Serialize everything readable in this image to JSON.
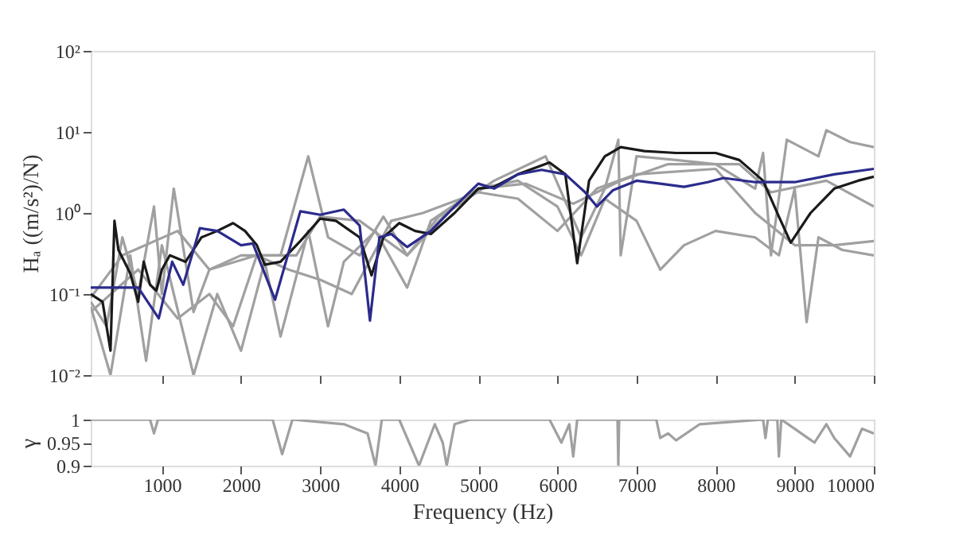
{
  "chart_data": [
    {
      "type": "line",
      "ylabel": "Hₐ ((m/s²)/N)",
      "log": "y",
      "xlim": [
        100,
        10000
      ],
      "xticks": [
        1000,
        2000,
        3000,
        4000,
        5000,
        6000,
        7000,
        8000,
        9000,
        10000
      ],
      "ylim": [
        0.01,
        100
      ],
      "yticks": [
        {
          "value": 0.01,
          "label": "10⁻²"
        },
        {
          "value": 0.1,
          "label": "10⁻¹"
        },
        {
          "value": 1,
          "label": "10⁰"
        },
        {
          "value": 10,
          "label": "10¹"
        },
        {
          "value": 100,
          "label": "10²"
        }
      ],
      "tick_labels": "y",
      "grid": false,
      "line_style": "solid",
      "marker": "none",
      "series": [
        {
          "color": "#a0a0a0",
          "x": [
            100,
            300,
            500,
            700,
            900,
            1000,
            1150,
            1400,
            1600,
            2000,
            2500,
            2850,
            3100,
            3500,
            3800,
            4100,
            4600,
            5200,
            5850,
            6300,
            6600,
            6770,
            6800,
            7000,
            7500,
            8000,
            8500,
            8600,
            8700,
            8900,
            9300,
            9400,
            9700,
            10000
          ],
          "values": [
            0.08,
            0.04,
            0.5,
            0.1,
            1.2,
            0.1,
            2.0,
            0.06,
            0.2,
            0.3,
            0.3,
            5.0,
            0.5,
            0.3,
            0.9,
            0.3,
            1.0,
            2.5,
            5.0,
            0.5,
            2.0,
            8.0,
            0.3,
            5.0,
            4.5,
            4.0,
            2.0,
            5.5,
            0.3,
            8.0,
            5.0,
            10.5,
            7.5,
            6.5
          ]
        },
        {
          "color": "#a0a0a0",
          "x": [
            100,
            350,
            600,
            800,
            1000,
            1400,
            1700,
            2000,
            2300,
            2500,
            2850,
            3100,
            3300,
            3700,
            4100,
            4400,
            5000,
            5500,
            6000,
            6300,
            6600,
            7000,
            7300,
            7600,
            8000,
            8500,
            8800,
            9000,
            9150,
            9300,
            9600,
            10000
          ],
          "values": [
            0.07,
            0.01,
            0.3,
            0.015,
            0.4,
            0.01,
            0.1,
            0.02,
            0.25,
            0.03,
            0.6,
            0.04,
            0.25,
            0.6,
            0.12,
            0.8,
            2.0,
            2.5,
            1.2,
            0.3,
            1.5,
            0.8,
            0.2,
            0.4,
            0.6,
            0.5,
            0.3,
            2.0,
            0.045,
            0.5,
            0.35,
            0.3
          ]
        },
        {
          "color": "#a0a0a0",
          "x": [
            100,
            700,
            1200,
            1600,
            1900,
            2200,
            2600,
            3000,
            3400,
            3900,
            4300,
            5000,
            5500,
            6000,
            6500,
            7000,
            8000,
            8500,
            9000,
            9500,
            10000
          ],
          "values": [
            0.06,
            0.2,
            0.05,
            0.1,
            0.04,
            0.3,
            0.2,
            0.15,
            0.1,
            0.8,
            1.0,
            1.8,
            1.5,
            0.6,
            2.0,
            3.0,
            3.5,
            1.0,
            0.4,
            0.4,
            0.45
          ]
        },
        {
          "color": "#a0a0a0",
          "x": [
            100,
            500,
            1200,
            1600,
            2200,
            2700,
            3000,
            3500,
            4100,
            4500,
            5000,
            5600,
            6200,
            6800,
            7400,
            8300,
            8700,
            9400,
            10000
          ],
          "values": [
            0.09,
            0.3,
            0.6,
            0.2,
            0.3,
            0.3,
            0.9,
            0.8,
            0.3,
            0.9,
            2.0,
            2.3,
            1.3,
            2.5,
            4.0,
            4.0,
            1.8,
            2.5,
            1.2
          ]
        },
        {
          "color": "#1a1a1a",
          "x": [
            100,
            250,
            350,
            400,
            450,
            600,
            700,
            770,
            850,
            930,
            1000,
            1100,
            1300,
            1500,
            1700,
            1900,
            2050,
            2200,
            2300,
            2500,
            2750,
            3000,
            3200,
            3500,
            3650,
            3800,
            4000,
            4200,
            4400,
            4700,
            5000,
            5200,
            5500,
            5900,
            6100,
            6250,
            6400,
            6600,
            6800,
            7100,
            7500,
            8000,
            8300,
            8600,
            8800,
            8950,
            9200,
            9500,
            9800,
            10000
          ],
          "values": [
            0.1,
            0.08,
            0.02,
            0.8,
            0.35,
            0.18,
            0.08,
            0.25,
            0.13,
            0.11,
            0.2,
            0.3,
            0.25,
            0.5,
            0.6,
            0.75,
            0.6,
            0.4,
            0.23,
            0.25,
            0.45,
            0.85,
            0.8,
            0.5,
            0.17,
            0.5,
            0.75,
            0.6,
            0.55,
            1.0,
            2.0,
            2.1,
            3.0,
            4.2,
            3.0,
            0.24,
            2.5,
            5.0,
            6.5,
            5.8,
            5.5,
            5.5,
            4.5,
            2.5,
            0.9,
            0.43,
            1.0,
            2.0,
            2.5,
            2.8
          ]
        },
        {
          "color": "#2b2b8c",
          "x": [
            100,
            700,
            960,
            1130,
            1270,
            1480,
            1700,
            2000,
            2150,
            2430,
            2750,
            3000,
            3300,
            3500,
            3630,
            3750,
            3900,
            4100,
            4400,
            4700,
            5000,
            5200,
            5500,
            5800,
            6100,
            6350,
            6500,
            6700,
            7000,
            7300,
            7600,
            7900,
            8100,
            8500,
            9000,
            9500,
            10000
          ],
          "values": [
            0.12,
            0.12,
            0.05,
            0.25,
            0.13,
            0.65,
            0.6,
            0.4,
            0.42,
            0.085,
            1.05,
            0.95,
            1.1,
            0.7,
            0.047,
            0.5,
            0.55,
            0.38,
            0.6,
            1.2,
            2.3,
            2.0,
            3.0,
            3.4,
            3.0,
            1.8,
            1.2,
            1.9,
            2.5,
            2.3,
            2.1,
            2.4,
            2.7,
            2.4,
            2.4,
            3.0,
            3.5
          ]
        }
      ]
    },
    {
      "type": "line",
      "xlabel": "Frequency (Hz)",
      "ylabel": "γ",
      "xlim": [
        100,
        10000
      ],
      "xticks": [
        1000,
        2000,
        3000,
        4000,
        5000,
        6000,
        7000,
        8000,
        9000,
        10000
      ],
      "ylim": [
        0.9,
        1
      ],
      "yticks": [
        0.9,
        0.95,
        1
      ],
      "grid": false,
      "line_style": "solid",
      "marker": "none",
      "series": [
        {
          "color": "#a0a0a0",
          "x": [
            100,
            850,
            900,
            950,
            2400,
            2520,
            2650,
            3300,
            3600,
            3700,
            3780,
            4000,
            4250,
            4450,
            4550,
            4600,
            4700,
            4900,
            5900,
            6050,
            6150,
            6200,
            6250,
            6760,
            6770,
            6780,
            7250,
            7300,
            7400,
            7500,
            7800,
            8600,
            8630,
            8660,
            8780,
            8800,
            8830,
            9000,
            9250,
            9400,
            9500,
            9700,
            9850,
            10000
          ],
          "values": [
            1,
            1,
            0.97,
            1,
            1,
            0.925,
            1,
            0.99,
            0.97,
            0.9,
            1,
            1,
            0.9,
            0.99,
            0.95,
            0.9,
            0.99,
            1,
            1,
            0.95,
            0.99,
            0.92,
            1,
            1,
            0.9,
            1,
            1,
            0.96,
            0.97,
            0.955,
            0.99,
            1,
            0.96,
            1,
            1,
            0.92,
            1,
            0.98,
            0.95,
            0.99,
            0.96,
            0.92,
            0.98,
            0.97
          ]
        }
      ]
    }
  ]
}
